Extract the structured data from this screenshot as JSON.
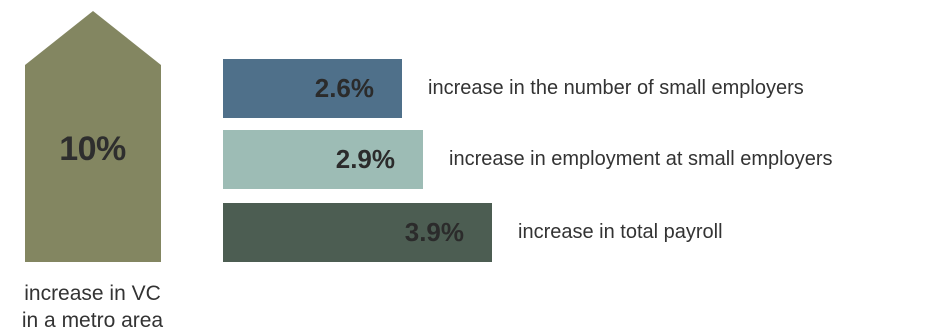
{
  "chart_data": {
    "type": "bar",
    "headline": {
      "value": 10,
      "value_label": "10%",
      "caption_lines": [
        "increase in VC",
        "in a metro area"
      ],
      "color": "#838661"
    },
    "categories": [
      "increase in the number of small employers",
      "increase in employment at small employers",
      "increase in total payroll"
    ],
    "values": [
      2.6,
      2.9,
      3.9
    ],
    "value_labels": [
      "2.6%",
      "2.9%",
      "3.9%"
    ],
    "colors": [
      "#4f708a",
      "#9dbcb5",
      "#4c5d52"
    ],
    "xlim": [
      0,
      3.9
    ]
  }
}
